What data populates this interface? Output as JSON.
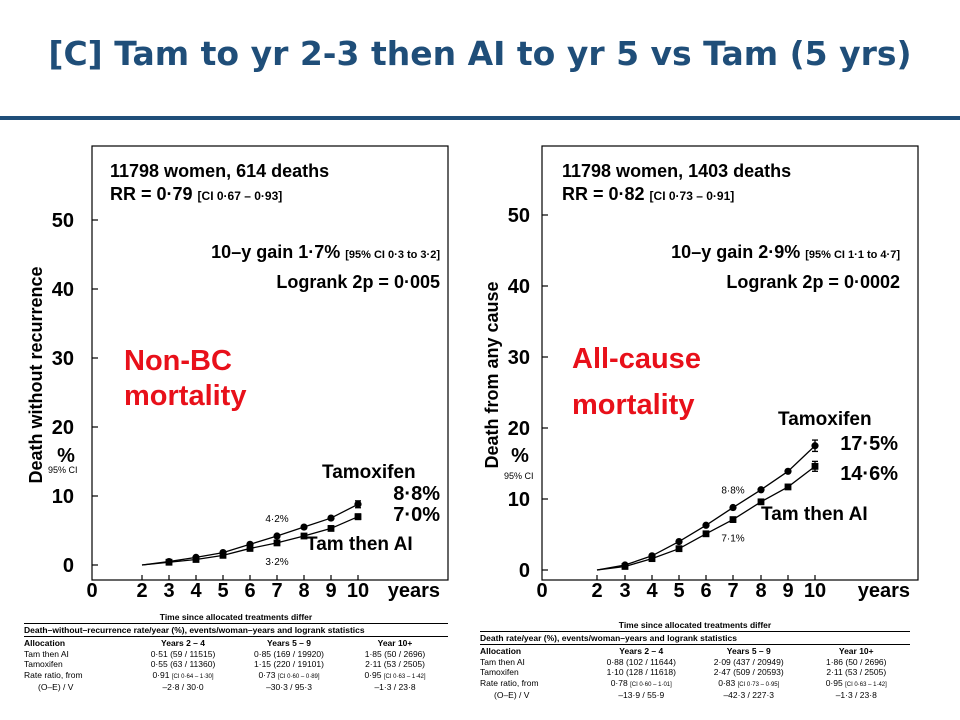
{
  "title": "[C] Tam to yr 2-3 then AI to yr 5 vs Tam (5 yrs)",
  "colors": {
    "title": "#1F4E79",
    "annotation": "#E8101A",
    "ink": "#000000"
  },
  "chart_data": [
    {
      "type": "line",
      "ylabel": "Death without recurrence",
      "ylabel_unit": "%",
      "ci_label": "95% CI",
      "xlabel": "years",
      "x_ticks": [
        "0",
        "2",
        "3",
        "4",
        "5",
        "6",
        "7",
        "8",
        "9",
        "10"
      ],
      "y_ticks": [
        "0",
        "10",
        "20",
        "30",
        "40",
        "50"
      ],
      "ylim": [
        0,
        59
      ],
      "info_line1": "11798 women, 614 deaths",
      "info_line2": "RR = 0·79",
      "info_line2_ci": "[CI 0·67 – 0·93]",
      "gain": "10–y gain 1·7%",
      "gain_ci": "[95% CI 0·3 to 3·2]",
      "logrank": "Logrank 2p = 0·005",
      "annotation": [
        "Non-BC",
        "mortality"
      ],
      "series": [
        {
          "name": "Tamoxifen",
          "end_label": "8·8%",
          "marker": "circle",
          "x": [
            3,
            4,
            5,
            6,
            7,
            8,
            9,
            10
          ],
          "y": [
            0.5,
            1.1,
            1.8,
            3.0,
            4.2,
            5.5,
            6.8,
            8.8
          ],
          "err_at_10": 0.5
        },
        {
          "name": "Tam then AI",
          "end_label": "7·0%",
          "marker": "square",
          "x": [
            3,
            4,
            5,
            6,
            7,
            8,
            9,
            10
          ],
          "y": [
            0.4,
            0.8,
            1.4,
            2.4,
            3.2,
            4.2,
            5.3,
            7.0
          ],
          "err_at_10": 0.4
        }
      ],
      "mid_labels": [
        {
          "x": 7,
          "text": "4·2%",
          "pos": "above"
        },
        {
          "x": 7,
          "text": "3·2%",
          "pos": "below"
        }
      ],
      "table": {
        "caption": "Time since allocated treatments differ",
        "header": "Death–without–recurrence rate/year (%), events/woman–years and logrank statistics",
        "columns": [
          "Allocation",
          "Years 2 – 4",
          "Years 5 – 9",
          "Year 10+"
        ],
        "rows": [
          [
            "Tam then AI",
            "0·51 (59 / 11515)",
            "0·85 (169 / 19920)",
            "1·85 (50 / 2696)"
          ],
          [
            "Tamoxifen",
            "0·55 (63 / 11360)",
            "1·15 (220 / 19101)",
            "2·11 (53 / 2505)"
          ]
        ],
        "rr_label": [
          "Rate ratio, from",
          "(O–E) / V"
        ],
        "rr": [
          {
            "val": "0·91",
            "ci": "[CI 0·64 – 1·30]",
            "oe": "–2·8 / 30·0"
          },
          {
            "val": "0·73",
            "ci": "[CI 0·60 – 0·89]",
            "oe": "–30·3 / 95·3"
          },
          {
            "val": "0·95",
            "ci": "[CI 0·63 – 1·42]",
            "oe": "–1·3 / 23·8"
          }
        ]
      }
    },
    {
      "type": "line",
      "ylabel": "Death from any cause",
      "ylabel_unit": "%",
      "ci_label": "95% CI",
      "xlabel": "years",
      "x_ticks": [
        "0",
        "2",
        "3",
        "4",
        "5",
        "6",
        "7",
        "8",
        "9",
        "10"
      ],
      "y_ticks": [
        "0",
        "10",
        "20",
        "30",
        "40",
        "50"
      ],
      "ylim": [
        0,
        59
      ],
      "info_line1": "11798 women, 1403 deaths",
      "info_line2": "RR = 0·82",
      "info_line2_ci": "[CI 0·73 – 0·91]",
      "gain": "10–y gain 2·9%",
      "gain_ci": "[95% CI 1·1 to 4·7]",
      "logrank": "Logrank 2p = 0·0002",
      "annotation": [
        "All-cause",
        "mortality"
      ],
      "series": [
        {
          "name": "Tamoxifen",
          "end_label": "17·5%",
          "marker": "circle",
          "x": [
            3,
            4,
            5,
            6,
            7,
            8,
            9,
            10
          ],
          "y": [
            0.7,
            2.0,
            4.0,
            6.3,
            8.8,
            11.3,
            13.9,
            17.5
          ],
          "err_at_10": 0.8
        },
        {
          "name": "Tam then AI",
          "end_label": "14·6%",
          "marker": "square",
          "x": [
            3,
            4,
            5,
            6,
            7,
            8,
            9,
            10
          ],
          "y": [
            0.5,
            1.6,
            3.0,
            5.1,
            7.1,
            9.6,
            11.7,
            14.6
          ],
          "err_at_10": 0.7
        }
      ],
      "mid_labels": [
        {
          "x": 7,
          "text": "8·8%",
          "pos": "above"
        },
        {
          "x": 7,
          "text": "7·1%",
          "pos": "below"
        }
      ],
      "table": {
        "caption": "Time since allocated treatments differ",
        "header": "Death rate/year (%), events/woman–years and logrank statistics",
        "columns": [
          "Allocation",
          "Years 2 – 4",
          "Years 5 – 9",
          "Year 10+"
        ],
        "rows": [
          [
            "Tam then AI",
            "0·88 (102 / 11644)",
            "2·09 (437 / 20949)",
            "1·86 (50 / 2696)"
          ],
          [
            "Tamoxifen",
            "1·10 (128 / 11618)",
            "2·47 (509 / 20593)",
            "2·11 (53 / 2505)"
          ]
        ],
        "rr_label": [
          "Rate ratio, from",
          "(O–E) / V"
        ],
        "rr": [
          {
            "val": "0·78",
            "ci": "[CI 0·60 – 1·01]",
            "oe": "–13·9 / 55·9"
          },
          {
            "val": "0·83",
            "ci": "[CI 0·73 – 0·95]",
            "oe": "–42·3 / 227·3"
          },
          {
            "val": "0·95",
            "ci": "[CI 0·63 – 1·42]",
            "oe": "–1·3 / 23·8"
          }
        ]
      }
    }
  ]
}
